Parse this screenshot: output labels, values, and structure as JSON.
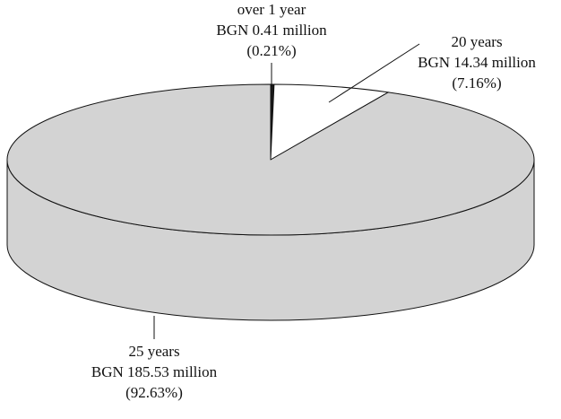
{
  "chart_data": {
    "type": "pie",
    "style": "3d",
    "categories": [
      "over 1 year",
      "20 years",
      "25 years"
    ],
    "values": [
      0.21,
      7.16,
      92.63
    ],
    "value_labels": [
      "(0.21%)",
      "(7.16%)",
      "(92.63%)"
    ],
    "amounts": [
      0.41,
      14.34,
      185.53
    ],
    "amount_labels": [
      "BGN 0.41 million",
      "BGN 14.34 million",
      "BGN 185.53 million"
    ],
    "colors": [
      "#1a1a1a",
      "#ffffff",
      "#d3d3d3"
    ]
  }
}
